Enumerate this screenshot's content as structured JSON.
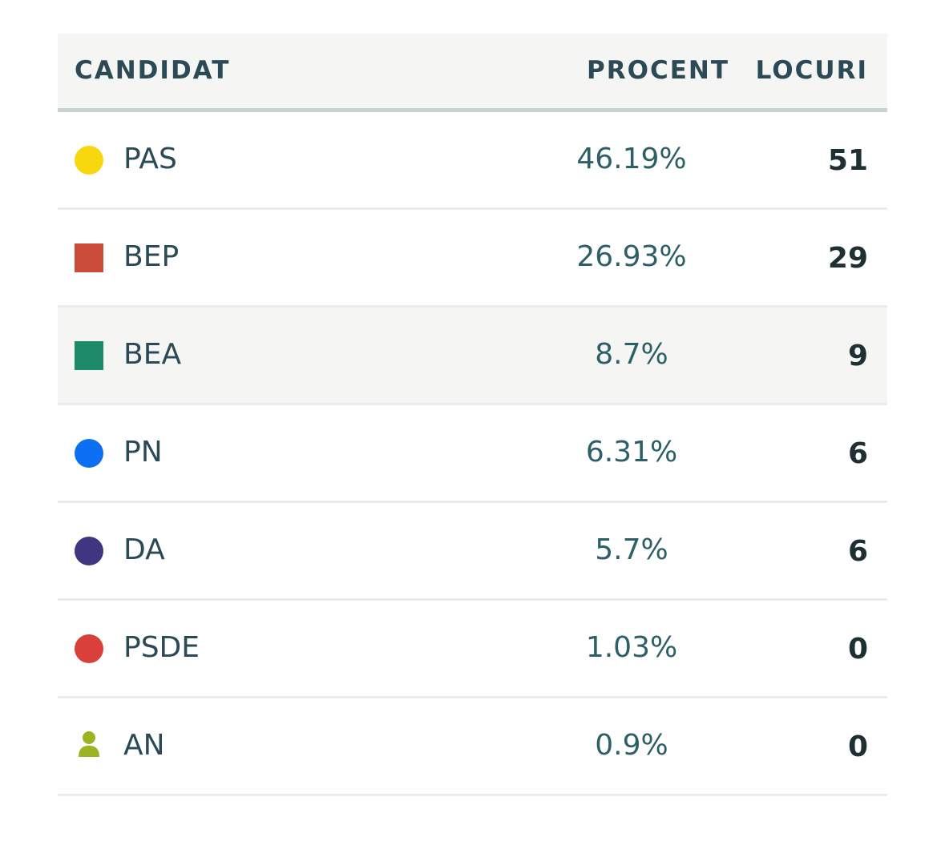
{
  "header": {
    "candidate_label": "CANDIDAT",
    "percent_label": "PROCENT",
    "seats_label": "LOCURI"
  },
  "rows": [
    {
      "name": "PAS",
      "percent": "46.19%",
      "seats": "51",
      "marker": "circle",
      "color": "#f7d80f"
    },
    {
      "name": "BEP",
      "percent": "26.93%",
      "seats": "29",
      "marker": "square",
      "color": "#c94b3a"
    },
    {
      "name": "BEA",
      "percent": "8.7%",
      "seats": "9",
      "marker": "square",
      "color": "#1e8a6a"
    },
    {
      "name": "PN",
      "percent": "6.31%",
      "seats": "6",
      "marker": "circle",
      "color": "#0d6ff2"
    },
    {
      "name": "DA",
      "percent": "5.7%",
      "seats": "6",
      "marker": "circle",
      "color": "#3e3680"
    },
    {
      "name": "PSDE",
      "percent": "1.03%",
      "seats": "0",
      "marker": "circle",
      "color": "#d84039"
    },
    {
      "name": "AN",
      "percent": "0.9%",
      "seats": "0",
      "marker": "person-icon",
      "color": "#9ab520"
    }
  ]
}
